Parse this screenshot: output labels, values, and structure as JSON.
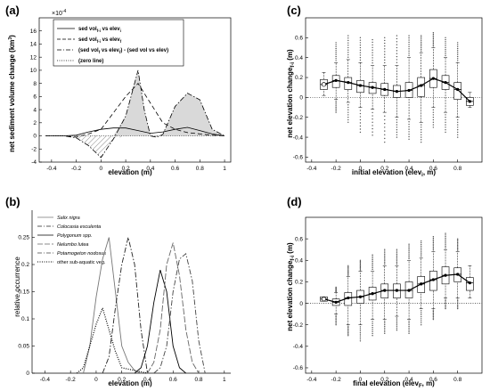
{
  "panels": {
    "a": {
      "label": "(a)"
    },
    "b": {
      "label": "(b)"
    },
    "c": {
      "label": "(c)"
    },
    "d": {
      "label": "(d)"
    }
  },
  "chart_data": [
    {
      "id": "a",
      "type": "line",
      "multiplier": "×10",
      "multiplier_exp": "-4",
      "xlabel": "elevation (m)",
      "ylabel_main": "net sediment volume change (km",
      "ylabel_sup": "3",
      "ylabel_end": ")",
      "xlim": [
        -0.5,
        1.05
      ],
      "ylim": [
        -4,
        18
      ],
      "xticks": [
        -0.4,
        -0.2,
        0,
        0.2,
        0.4,
        0.6,
        0.8,
        1
      ],
      "yticks": [
        -4,
        -2,
        0,
        2,
        4,
        6,
        8,
        10,
        12,
        14,
        16
      ],
      "legend": [
        {
          "main": "sed vol",
          "sub": "f-i",
          "mid": " vs elev",
          "sub2": "i",
          "tail": "",
          "style": "solid"
        },
        {
          "main": "sed vol",
          "sub": "f-i",
          "mid": " vs elev",
          "sub2": "f",
          "tail": "",
          "style": "dashed"
        },
        {
          "main": "(sed vol",
          "sub": "f",
          "mid": " vs elev",
          "sub2": "f",
          "tail": ") - (sed vol vs elev)",
          "style": "dashdot"
        },
        {
          "main": "(zero line)",
          "sub": "",
          "mid": "",
          "sub2": "",
          "tail": "",
          "style": "dotted"
        }
      ],
      "series": [
        {
          "style": "solid",
          "x": [
            -0.45,
            -0.3,
            -0.2,
            -0.1,
            0,
            0.1,
            0.2,
            0.3,
            0.4,
            0.5,
            0.6,
            0.7,
            0.8,
            0.9,
            1.0
          ],
          "y": [
            0,
            0,
            0.1,
            0.6,
            1.0,
            1.2,
            1.2,
            0.8,
            0.4,
            0.6,
            1.0,
            1.3,
            0.8,
            0.3,
            0
          ]
        },
        {
          "style": "dashed",
          "x": [
            -0.45,
            -0.3,
            -0.2,
            -0.1,
            0,
            0.1,
            0.2,
            0.3,
            0.4,
            0.5,
            0.6,
            0.7,
            0.8,
            0.9,
            1.0
          ],
          "y": [
            0,
            0,
            -0.2,
            0.3,
            1.0,
            3.5,
            6.0,
            8.0,
            5.0,
            2.0,
            1.0,
            0.5,
            0.3,
            0.1,
            0
          ]
        },
        {
          "style": "dashdot",
          "x": [
            -0.45,
            -0.3,
            -0.2,
            -0.1,
            0,
            0.1,
            0.2,
            0.25,
            0.3,
            0.35,
            0.4,
            0.45,
            0.5,
            0.6,
            0.7,
            0.8,
            0.9,
            1.0
          ],
          "y": [
            0,
            0,
            -0.3,
            -1.5,
            -3.3,
            -0.5,
            3.0,
            6.5,
            10.0,
            4.0,
            0.0,
            -0.2,
            0.2,
            4.5,
            6.5,
            5.5,
            1.0,
            0
          ]
        },
        {
          "style": "dotted",
          "x": [
            -0.45,
            1.0
          ],
          "y": [
            0,
            0
          ]
        }
      ]
    },
    {
      "id": "b",
      "type": "line",
      "xlabel": "elevation (m)",
      "ylabel": "relative occurrence",
      "xlim": [
        -0.5,
        1.05
      ],
      "ylim": [
        0,
        0.3
      ],
      "xticks": [
        -0.4,
        -0.2,
        0,
        0.2,
        0.4,
        0.6,
        0.8,
        1
      ],
      "yticks": [
        0,
        0.05,
        0.1,
        0.15,
        0.2,
        0.25
      ],
      "series": [
        {
          "name": "Salix nigra",
          "style": "thin",
          "color": "#777777",
          "x": [
            -0.1,
            -0.05,
            0,
            0.05,
            0.1,
            0.15,
            0.2,
            0.25,
            0.3,
            0.35
          ],
          "y": [
            0,
            0.05,
            0.14,
            0.21,
            0.25,
            0.15,
            0.05,
            0.02,
            0.005,
            0
          ]
        },
        {
          "name": "Colocasia esculenta",
          "style": "dashdot",
          "color": "#222222",
          "x": [
            0.05,
            0.1,
            0.15,
            0.2,
            0.25,
            0.3,
            0.35,
            0.4
          ],
          "y": [
            0,
            0.03,
            0.12,
            0.2,
            0.25,
            0.2,
            0.08,
            0
          ]
        },
        {
          "name": "Polygonum spp.",
          "style": "solid",
          "color": "#000000",
          "x": [
            0.3,
            0.35,
            0.4,
            0.45,
            0.5,
            0.55,
            0.6,
            0.65,
            0.7
          ],
          "y": [
            0,
            0.01,
            0.05,
            0.13,
            0.19,
            0.15,
            0.05,
            0.01,
            0
          ]
        },
        {
          "name": "Nelumbo lutea",
          "style": "longdash",
          "color": "#666666",
          "x": [
            0.4,
            0.45,
            0.5,
            0.55,
            0.6,
            0.65,
            0.7,
            0.75,
            0.8
          ],
          "y": [
            0,
            0.02,
            0.08,
            0.2,
            0.24,
            0.18,
            0.08,
            0.02,
            0
          ]
        },
        {
          "name": "Potamogeton nodosus",
          "style": "dashdot",
          "color": "#444444",
          "x": [
            0.45,
            0.5,
            0.55,
            0.6,
            0.65,
            0.7,
            0.75,
            0.8,
            0.85
          ],
          "y": [
            0,
            0.01,
            0.05,
            0.15,
            0.21,
            0.22,
            0.17,
            0.06,
            0
          ]
        },
        {
          "name": "other sub-aquatic veg.",
          "style": "dotted",
          "color": "#000000",
          "x": [
            -0.15,
            -0.1,
            -0.05,
            0,
            0.05,
            0.1,
            0.15,
            0.2,
            0.3,
            0.4
          ],
          "y": [
            0,
            0.01,
            0.05,
            0.09,
            0.12,
            0.08,
            0.04,
            0.01,
            0.005,
            0
          ]
        }
      ]
    },
    {
      "id": "c",
      "type": "box",
      "xlabel_main": "initial elevation (elev",
      "xlabel_sub": "i",
      "xlabel_end": ", m)",
      "ylabel_main": "net elevation change",
      "ylabel_sub": "f-i",
      "ylabel_end": " (m)",
      "xlim": [
        -0.45,
        1.0
      ],
      "ylim": [
        -0.65,
        0.8
      ],
      "xticks": [
        -0.4,
        -0.2,
        0,
        0.2,
        0.4,
        0.6,
        0.8
      ],
      "yticks": [
        -0.6,
        -0.4,
        -0.2,
        0,
        0.2,
        0.4,
        0.6
      ],
      "boxes": {
        "x": [
          -0.3,
          -0.2,
          -0.1,
          0.0,
          0.1,
          0.2,
          0.3,
          0.4,
          0.5,
          0.6,
          0.7,
          0.8,
          0.9
        ],
        "median": [
          0.13,
          0.17,
          0.15,
          0.12,
          0.1,
          0.08,
          0.06,
          0.07,
          0.12,
          0.19,
          0.15,
          0.08,
          -0.04
        ],
        "q1": [
          0.08,
          0.1,
          0.08,
          0.05,
          0.04,
          0.02,
          0.0,
          0.0,
          0.01,
          0.1,
          0.08,
          -0.02,
          -0.08
        ],
        "q3": [
          0.18,
          0.22,
          0.2,
          0.17,
          0.15,
          0.14,
          0.12,
          0.15,
          0.2,
          0.28,
          0.22,
          0.15,
          0.0
        ],
        "lo": [
          0.02,
          -0.02,
          -0.05,
          -0.1,
          -0.12,
          -0.15,
          -0.2,
          -0.22,
          -0.25,
          -0.1,
          -0.15,
          -0.2,
          -0.1
        ],
        "hi": [
          0.25,
          0.35,
          0.38,
          0.35,
          0.32,
          0.32,
          0.32,
          0.4,
          0.45,
          0.5,
          0.4,
          0.35,
          0.05
        ],
        "out_lo": [
          null,
          -0.15,
          -0.25,
          -0.35,
          -0.38,
          -0.45,
          -0.4,
          -0.42,
          -0.45,
          -0.3,
          -0.35,
          -0.4,
          null
        ],
        "out_hi": [
          null,
          0.55,
          0.62,
          0.6,
          0.58,
          0.6,
          0.62,
          0.62,
          0.62,
          0.65,
          0.6,
          0.55,
          null
        ]
      },
      "line": {
        "x": [
          -0.3,
          -0.2,
          -0.1,
          0,
          0.1,
          0.2,
          0.3,
          0.4,
          0.5,
          0.6,
          0.7,
          0.8,
          0.9
        ],
        "y": [
          0.13,
          0.17,
          0.15,
          0.12,
          0.1,
          0.08,
          0.06,
          0.07,
          0.12,
          0.19,
          0.15,
          0.08,
          -0.04
        ]
      }
    },
    {
      "id": "d",
      "type": "box",
      "xlabel_main": "final elevation (elev",
      "xlabel_sub": "F",
      "xlabel_end": ", m)",
      "ylabel_main": "net elevation change",
      "ylabel_sub": "f-i",
      "ylabel_end": " (m)",
      "xlim": [
        -0.45,
        1.0
      ],
      "ylim": [
        -0.65,
        0.8
      ],
      "xticks": [
        -0.4,
        -0.2,
        0,
        0.2,
        0.4,
        0.6,
        0.8
      ],
      "yticks": [
        -0.6,
        -0.4,
        -0.2,
        0,
        0.2,
        0.4,
        0.6
      ],
      "boxes": {
        "x": [
          -0.3,
          -0.2,
          -0.1,
          0.0,
          0.1,
          0.2,
          0.3,
          0.4,
          0.5,
          0.6,
          0.7,
          0.8,
          0.9
        ],
        "median": [
          0.04,
          0.01,
          0.05,
          0.06,
          0.09,
          0.12,
          0.12,
          0.12,
          0.18,
          0.22,
          0.26,
          0.27,
          0.19
        ],
        "q1": [
          0.02,
          -0.02,
          -0.02,
          0.0,
          0.03,
          0.05,
          0.05,
          0.05,
          0.1,
          0.12,
          0.18,
          0.2,
          0.12
        ],
        "q3": [
          0.06,
          0.04,
          0.1,
          0.12,
          0.15,
          0.18,
          0.18,
          0.2,
          0.25,
          0.3,
          0.34,
          0.33,
          0.24
        ],
        "lo": [
          0.02,
          -0.1,
          -0.2,
          -0.2,
          -0.15,
          -0.15,
          -0.12,
          -0.15,
          -0.05,
          -0.05,
          0.05,
          0.05,
          0.05
        ],
        "hi": [
          0.06,
          0.1,
          0.25,
          0.3,
          0.3,
          0.35,
          0.35,
          0.4,
          0.42,
          0.48,
          0.5,
          0.48,
          0.35
        ],
        "out_lo": [
          null,
          -0.2,
          -0.3,
          -0.35,
          -0.3,
          -0.28,
          -0.25,
          -0.28,
          -0.2,
          -0.15,
          -0.05,
          -0.05,
          null
        ],
        "out_hi": [
          null,
          0.15,
          0.35,
          0.4,
          0.45,
          0.5,
          0.5,
          0.55,
          0.58,
          0.62,
          0.65,
          0.6,
          null
        ]
      },
      "line": {
        "x": [
          -0.3,
          -0.2,
          -0.1,
          0,
          0.1,
          0.2,
          0.3,
          0.4,
          0.5,
          0.6,
          0.7,
          0.8,
          0.9
        ],
        "y": [
          0.04,
          0.01,
          0.05,
          0.06,
          0.09,
          0.12,
          0.12,
          0.12,
          0.18,
          0.22,
          0.26,
          0.27,
          0.19
        ]
      }
    }
  ]
}
